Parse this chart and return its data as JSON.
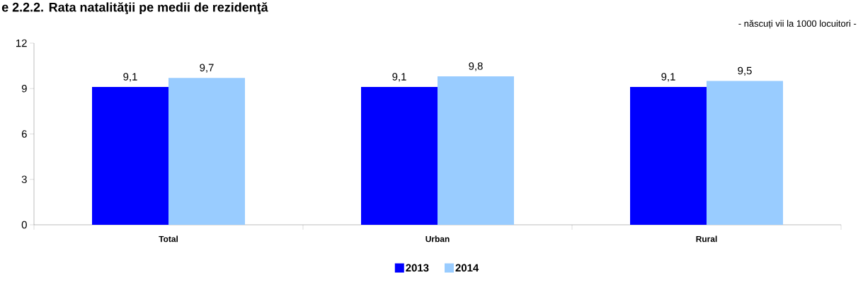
{
  "chart_data": {
    "type": "bar",
    "title": "e 2.2.2. Rata natalităţii pe medii de rezidenţă",
    "subtitle": "- născuți vii la 1000 locuitori -",
    "categories": [
      "Total",
      "Urban",
      "Rural"
    ],
    "series": [
      {
        "name": "2013",
        "color": "#0000ff",
        "values": [
          9.1,
          9.1,
          9.1
        ],
        "value_labels": [
          "9,1",
          "9,1",
          "9,1"
        ]
      },
      {
        "name": "2014",
        "color": "#99ccff",
        "values": [
          9.7,
          9.8,
          9.5
        ],
        "value_labels": [
          "9,7",
          "9,8",
          "9,5"
        ]
      }
    ],
    "ylim": [
      0,
      12
    ],
    "yticks": [
      0,
      3,
      6,
      9,
      12
    ],
    "legend": "bottom"
  }
}
